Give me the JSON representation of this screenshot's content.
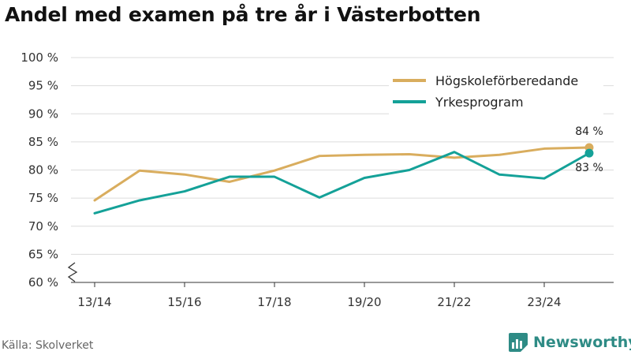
{
  "chart_data": {
    "type": "line",
    "title": "Andel med examen på tre år i Västerbotten",
    "x": [
      "13/14",
      "14/15",
      "15/16",
      "16/17",
      "17/18",
      "18/19",
      "19/20",
      "20/21",
      "21/22",
      "22/23",
      "23/24",
      "24/25"
    ],
    "x_tick_labels": [
      "13/14",
      "15/16",
      "17/18",
      "19/20",
      "21/22",
      "23/24"
    ],
    "y_tick_labels": [
      "60 %",
      "65 %",
      "70 %",
      "75 %",
      "80 %",
      "85 %",
      "90 %",
      "95 %",
      "100 %"
    ],
    "ylim": [
      60,
      100
    ],
    "y_axis_break": true,
    "grid": true,
    "legend_position": "top-right",
    "series": [
      {
        "name": "Högskoleförberedande",
        "color": "#d9ad5e",
        "values": [
          74.6,
          79.9,
          79.2,
          77.9,
          79.9,
          82.5,
          82.7,
          82.8,
          82.2,
          82.7,
          83.8,
          84.0
        ],
        "end_label": "84 %"
      },
      {
        "name": "Yrkesprogram",
        "color": "#14a198",
        "values": [
          72.3,
          74.6,
          76.2,
          78.8,
          78.8,
          75.1,
          78.6,
          80.0,
          83.2,
          79.2,
          78.5,
          83.0
        ],
        "end_label": "83 %"
      }
    ]
  },
  "source": "Källa: Skolverket",
  "brand": {
    "name": "Newsworthy",
    "icon": "bar-chart-logo-icon",
    "color": "#2e8b85"
  }
}
